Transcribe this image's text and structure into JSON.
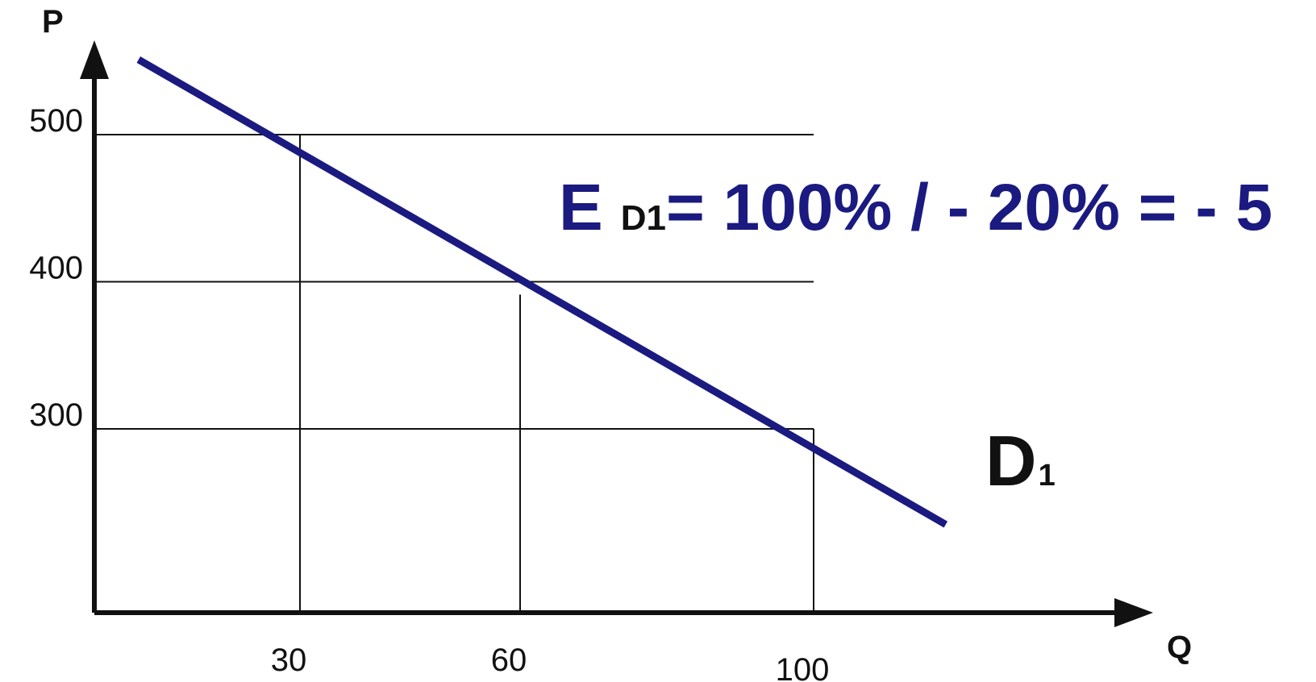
{
  "colors": {
    "curve": "#1a1a80",
    "axis": "#111111",
    "grid": "#111111",
    "formula": "#1a1a80"
  },
  "chart_data": {
    "type": "line",
    "xlabel": "Q",
    "ylabel": "P",
    "x_ticks": [
      30,
      60,
      100
    ],
    "y_ticks": [
      300,
      400,
      500
    ],
    "x_tick_labels": [
      "30",
      "60",
      "100"
    ],
    "y_tick_labels": [
      "300",
      "400",
      "500"
    ],
    "grid": true,
    "series": [
      {
        "name": "D1",
        "x": [
          8,
          118
        ],
        "y": [
          551,
          235
        ]
      }
    ],
    "reference_points": [
      {
        "x": 30,
        "y": 500
      },
      {
        "x": 60,
        "y": 400
      },
      {
        "x": 100,
        "y": 300
      }
    ],
    "curve_label": {
      "main": "D",
      "sub": "1"
    },
    "annotation": {
      "main": "E",
      "sub": "D1",
      "rest": "= 100% / - 20% = - 5"
    }
  }
}
